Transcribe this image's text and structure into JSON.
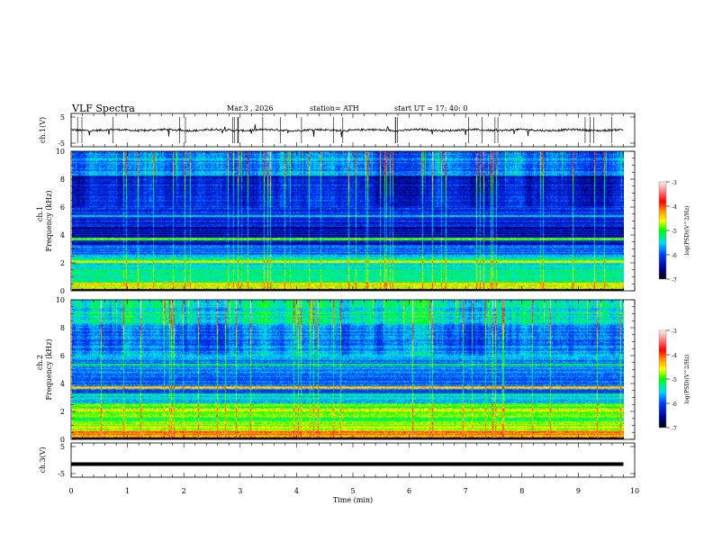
{
  "header": {
    "title": "VLF  Spectra",
    "date": "Mar.3  , 2026",
    "station": "station= ATH",
    "start": "start  UT  =    17: 40: 0"
  },
  "chart_data": [
    {
      "type": "line",
      "name": "ch1-waveform",
      "ylabel": "ch.1(V)",
      "ylim": [
        -5,
        5
      ],
      "yticks": [
        "5",
        "-5"
      ],
      "xlim": [
        0,
        10
      ],
      "data_end_min": 9.8
    },
    {
      "type": "heatmap",
      "name": "ch1-spectrogram",
      "ylabel_top": "ch.1",
      "ylabel": "Frequency  (kHz)",
      "ylim": [
        0,
        10
      ],
      "yticks": [
        "0",
        "2",
        "4",
        "6",
        "8",
        "10"
      ],
      "xlim": [
        0,
        10
      ],
      "zlim": [
        -7,
        -3
      ],
      "colorbar_label": "log(PSD)(V^2/Hz)",
      "colorbar_ticks": [
        "-3",
        "-4",
        "-5",
        "-6",
        "-7"
      ],
      "level_offset": 0
    },
    {
      "type": "heatmap",
      "name": "ch2-spectrogram",
      "ylabel_top": "ch.2",
      "ylabel": "Frequency  (kHz)",
      "ylim": [
        0,
        10
      ],
      "yticks": [
        "0",
        "2",
        "4",
        "6",
        "8",
        "10"
      ],
      "xlim": [
        0,
        10
      ],
      "zlim": [
        -7,
        -3
      ],
      "colorbar_label": "log(PSD)(V^2/Hz)",
      "colorbar_ticks": [
        "-3",
        "-4",
        "-5",
        "-6",
        "-7"
      ],
      "level_offset": 0.45
    },
    {
      "type": "line",
      "name": "ch3-waveform",
      "ylabel": "ch.3(V)",
      "ylim": [
        -5,
        5
      ],
      "yticks": [
        "5",
        "-5"
      ],
      "value": -1.5,
      "xlim": [
        0,
        10
      ],
      "data_end_min": 9.8
    }
  ],
  "xaxis": {
    "label": "Time  (min)",
    "ticks": [
      "0",
      "1",
      "2",
      "3",
      "4",
      "5",
      "6",
      "7",
      "8",
      "9",
      "10"
    ]
  }
}
